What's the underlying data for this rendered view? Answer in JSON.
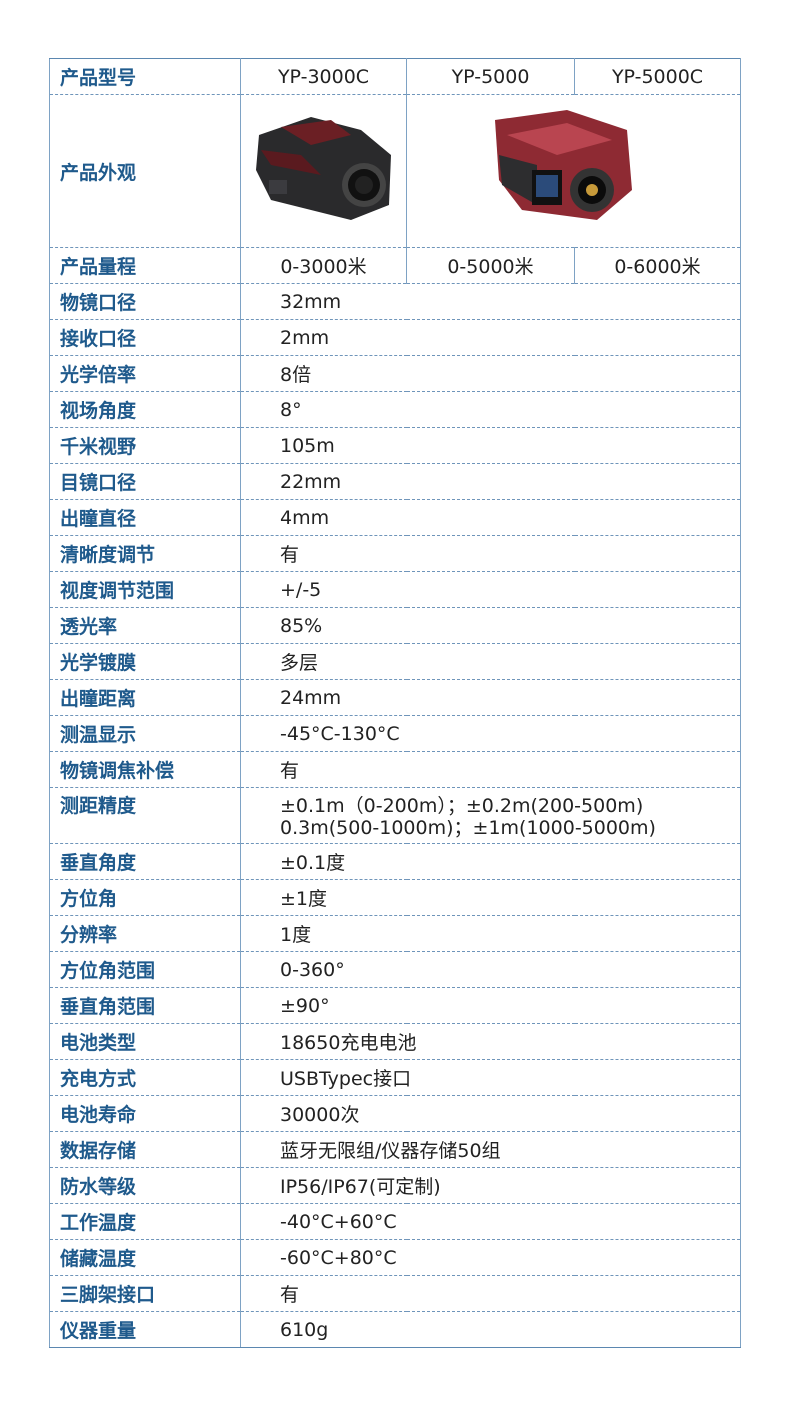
{
  "header": {
    "label": "产品型号",
    "models": [
      "YP-3000C",
      "YP-5000",
      "YP-5000C"
    ]
  },
  "appearance": {
    "label": "产品外观",
    "images": [
      "rangefinder-dark-red",
      "rangefinder-red-screen"
    ]
  },
  "range": {
    "label": "产品量程",
    "values": [
      "0-3000米",
      "0-5000米",
      "0-6000米"
    ]
  },
  "colors": {
    "label": "#1f5a8c",
    "border": "#5b87b0"
  },
  "rows": [
    {
      "label": "物镜口径",
      "value": "32mm"
    },
    {
      "label": "接收口径",
      "value": "2mm"
    },
    {
      "label": "光学倍率",
      "value": "8倍"
    },
    {
      "label": "视场角度",
      "value": "8°"
    },
    {
      "label": "千米视野",
      "value": "105m"
    },
    {
      "label": "目镜口径",
      "value": "22mm"
    },
    {
      "label": "出瞳直径",
      "value": "4mm"
    },
    {
      "label": "清晰度调节",
      "value": "有"
    },
    {
      "label": "视度调节范围",
      "value": "+/-5"
    },
    {
      "label": "透光率",
      "value": "85%"
    },
    {
      "label": "光学镀膜",
      "value": "多层"
    },
    {
      "label": "出瞳距离",
      "value": "24mm"
    },
    {
      "label": "测温显示",
      "value": "-45°C-130°C"
    },
    {
      "label": "物镜调焦补偿",
      "value": "有"
    }
  ],
  "accuracy": {
    "label": "测距精度",
    "line1": "±0.1m（0-200m）；±0.2m(200-500m)",
    "line2": "0.3m(500-1000m)；±1m(1000-5000m)"
  },
  "rows2": [
    {
      "label": "垂直角度",
      "value": "±0.1度"
    },
    {
      "label": "方位角",
      "value": "±1度"
    },
    {
      "label": "分辨率",
      "value": "1度"
    },
    {
      "label": "方位角范围",
      "value": "0-360°"
    },
    {
      "label": "垂直角范围",
      "value": "±90°"
    },
    {
      "label": "电池类型",
      "value": "18650充电电池"
    },
    {
      "label": "充电方式",
      "value": "USBTypec接口"
    },
    {
      "label": "电池寿命",
      "value": "30000次"
    },
    {
      "label": "数据存储",
      "value": "蓝牙无限组/仪器存储50组"
    },
    {
      "label": "防水等级",
      "value": "IP56/IP67(可定制)"
    },
    {
      "label": "工作温度",
      "value": "-40°C+60°C"
    },
    {
      "label": "储藏温度",
      "value": "-60°C+80°C"
    },
    {
      "label": "三脚架接口",
      "value": "有"
    },
    {
      "label": "仪器重量",
      "value": "610g"
    }
  ]
}
